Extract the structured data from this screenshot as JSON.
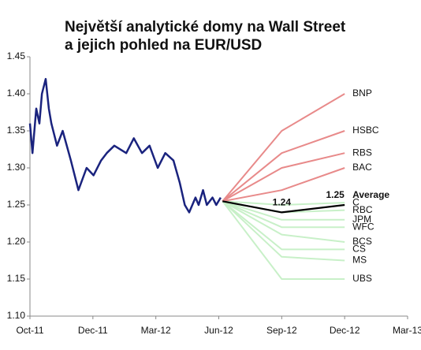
{
  "chart_data": {
    "type": "line",
    "title": [
      "Největší analytické domy na Wall Street",
      "a jejich pohled na EUR/USD"
    ],
    "xlim": [
      0,
      6
    ],
    "xticks": [
      {
        "value": 0,
        "label": "Oct-11"
      },
      {
        "value": 1,
        "label": "Dec-11"
      },
      {
        "value": 2,
        "label": "Mar-12"
      },
      {
        "value": 3,
        "label": "Jun-12"
      },
      {
        "value": 4,
        "label": "Sep-12"
      },
      {
        "value": 5,
        "label": "Dec-12"
      },
      {
        "value": 6,
        "label": "Mar-13"
      }
    ],
    "ylim": [
      1.1,
      1.45
    ],
    "yticks": [
      {
        "value": 1.1,
        "label": "1.10"
      },
      {
        "value": 1.15,
        "label": "1.15"
      },
      {
        "value": 1.2,
        "label": "1.20"
      },
      {
        "value": 1.25,
        "label": "1.25"
      },
      {
        "value": 1.3,
        "label": "1.30"
      },
      {
        "value": 1.35,
        "label": "1.35"
      },
      {
        "value": 1.4,
        "label": "1.40"
      },
      {
        "value": 1.45,
        "label": "1.45"
      }
    ],
    "grid": false,
    "series": [
      {
        "name": "UBS",
        "color": "#c8f0c8",
        "x": [
          3.06,
          4,
          5
        ],
        "values": [
          1.255,
          1.15,
          1.15
        ]
      },
      {
        "name": "MS",
        "color": "#c8f0c8",
        "x": [
          3.06,
          4,
          5
        ],
        "values": [
          1.255,
          1.18,
          1.175
        ]
      },
      {
        "name": "CS",
        "color": "#c8f0c8",
        "x": [
          3.06,
          4,
          5
        ],
        "values": [
          1.255,
          1.19,
          1.19
        ]
      },
      {
        "name": "BCS",
        "color": "#c8f0c8",
        "x": [
          3.06,
          4,
          5
        ],
        "values": [
          1.255,
          1.21,
          1.2
        ]
      },
      {
        "name": "WFC",
        "color": "#c8f0c8",
        "x": [
          3.06,
          4,
          5
        ],
        "values": [
          1.255,
          1.22,
          1.22
        ]
      },
      {
        "name": "JPM",
        "color": "#c8f0c8",
        "x": [
          3.06,
          4,
          5
        ],
        "values": [
          1.255,
          1.23,
          1.23
        ]
      },
      {
        "name": "RBC",
        "color": "#c8f0c8",
        "x": [
          3.06,
          4,
          5
        ],
        "values": [
          1.255,
          1.24,
          1.243
        ]
      },
      {
        "name": "C",
        "color": "#c8f0c8",
        "x": [
          3.06,
          4,
          5
        ],
        "values": [
          1.255,
          1.25,
          1.253
        ]
      },
      {
        "name": "BAC",
        "color": "#e88a8a",
        "x": [
          3.06,
          4,
          5
        ],
        "values": [
          1.255,
          1.27,
          1.3
        ]
      },
      {
        "name": "RBS",
        "color": "#e88a8a",
        "x": [
          3.06,
          4,
          5
        ],
        "values": [
          1.255,
          1.3,
          1.32
        ]
      },
      {
        "name": "HSBC",
        "color": "#e88a8a",
        "x": [
          3.06,
          4,
          5
        ],
        "values": [
          1.255,
          1.32,
          1.35
        ]
      },
      {
        "name": "BNP",
        "color": "#e88a8a",
        "x": [
          3.06,
          4,
          5
        ],
        "values": [
          1.255,
          1.35,
          1.4
        ]
      },
      {
        "name": "Average",
        "color": "#000000",
        "x": [
          3.06,
          4,
          5
        ],
        "values": [
          1.255,
          1.24,
          1.25
        ],
        "value_labels": [
          null,
          "1.24",
          "1.25"
        ]
      },
      {
        "color": "#1a237e",
        "x": [
          0,
          0.04,
          0.1,
          0.15,
          0.19,
          0.25,
          0.3,
          0.34,
          0.43,
          0.52,
          0.65,
          0.77,
          0.9,
          1.01,
          1.13,
          1.22,
          1.34,
          1.53,
          1.65,
          1.78,
          1.9,
          2.03,
          2.15,
          2.28,
          2.38,
          2.46,
          2.53,
          2.63,
          2.68,
          2.75,
          2.81,
          2.9,
          2.96,
          3.03
        ],
        "values": [
          1.36,
          1.32,
          1.38,
          1.36,
          1.4,
          1.42,
          1.38,
          1.36,
          1.33,
          1.35,
          1.31,
          1.27,
          1.3,
          1.29,
          1.31,
          1.32,
          1.33,
          1.32,
          1.34,
          1.32,
          1.33,
          1.3,
          1.32,
          1.31,
          1.28,
          1.25,
          1.24,
          1.26,
          1.25,
          1.27,
          1.25,
          1.26,
          1.25,
          1.26
        ]
      }
    ]
  }
}
